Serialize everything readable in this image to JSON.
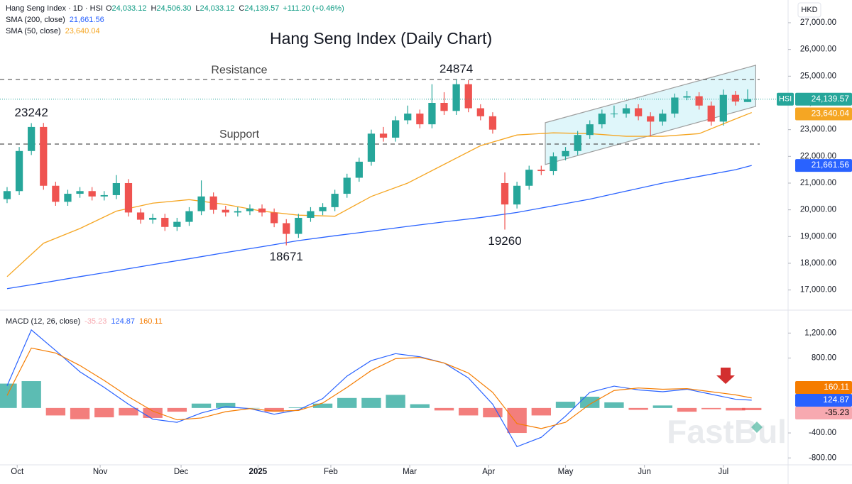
{
  "chart_data": [
    {
      "type": "candlestick",
      "title": "Hang Seng Index (Daily Chart)",
      "symbol_label": "Hang Seng Index · 1D · HSI",
      "ohlc_legend": [
        {
          "key": "O",
          "value": "24,033.12"
        },
        {
          "key": "H",
          "value": "24,506.30"
        },
        {
          "key": "L",
          "value": "24,033.12"
        },
        {
          "key": "C",
          "value": "24,139.57"
        }
      ],
      "change_label": "+111.20 (+0.46%)",
      "currency": "HKD",
      "price_badge": "HSI",
      "price_label": "24,139.57",
      "up_color": "#26a69a",
      "down_color": "#ef5350",
      "x": [
        0,
        3,
        6,
        9,
        12,
        15,
        18,
        21,
        24,
        27,
        30,
        33,
        36,
        39,
        42,
        45,
        48,
        51,
        54,
        57,
        60,
        63,
        66,
        69,
        72,
        75,
        78,
        81,
        84,
        87,
        90,
        93,
        96,
        99,
        102,
        105,
        108,
        111,
        114,
        117,
        120,
        123,
        126,
        129,
        132,
        135,
        138,
        141,
        144,
        147,
        150,
        153,
        156,
        159,
        162,
        165,
        168,
        171,
        174,
        177,
        180,
        183
      ],
      "ohlc": [
        [
          20400,
          20850,
          20250,
          20700
        ],
        [
          20700,
          22350,
          20550,
          22200
        ],
        [
          22200,
          23242,
          22050,
          23100
        ],
        [
          23100,
          23250,
          20750,
          20900
        ],
        [
          20900,
          21050,
          20150,
          20300
        ],
        [
          20300,
          20750,
          20150,
          20600
        ],
        [
          20600,
          20850,
          20450,
          20700
        ],
        [
          20700,
          20850,
          20350,
          20500
        ],
        [
          20500,
          20700,
          20350,
          20550
        ],
        [
          20550,
          21300,
          20400,
          21000
        ],
        [
          21000,
          21150,
          19750,
          19900
        ],
        [
          19900,
          20050,
          19480,
          19630
        ],
        [
          19630,
          19850,
          19480,
          19700
        ],
        [
          19700,
          19850,
          19210,
          19360
        ],
        [
          19360,
          19700,
          19210,
          19550
        ],
        [
          19550,
          20100,
          19400,
          19950
        ],
        [
          19950,
          21100,
          19800,
          20500
        ],
        [
          20500,
          20650,
          19850,
          20000
        ],
        [
          20000,
          20150,
          19750,
          19900
        ],
        [
          19900,
          20100,
          19750,
          19950
        ],
        [
          19950,
          20200,
          19800,
          20050
        ],
        [
          20050,
          20200,
          19750,
          19900
        ],
        [
          19900,
          20050,
          19350,
          19500
        ],
        [
          19500,
          19650,
          18671,
          19100
        ],
        [
          19100,
          19850,
          18950,
          19700
        ],
        [
          19700,
          20100,
          19550,
          19950
        ],
        [
          19950,
          20250,
          19800,
          20100
        ],
        [
          20100,
          20750,
          19950,
          20600
        ],
        [
          20600,
          21350,
          20450,
          21200
        ],
        [
          21200,
          21950,
          21050,
          21800
        ],
        [
          21800,
          23000,
          21650,
          22850
        ],
        [
          22850,
          23100,
          22550,
          22700
        ],
        [
          22700,
          23500,
          22550,
          23350
        ],
        [
          23350,
          23900,
          23200,
          23600
        ],
        [
          23600,
          23750,
          23050,
          23200
        ],
        [
          23200,
          24700,
          23050,
          24000
        ],
        [
          24000,
          24400,
          23550,
          23700
        ],
        [
          23700,
          24874,
          23550,
          24700
        ],
        [
          24700,
          24850,
          23650,
          23800
        ],
        [
          23800,
          23950,
          23350,
          23500
        ],
        [
          23500,
          23650,
          22850,
          23000
        ],
        [
          21000,
          21400,
          19260,
          20200
        ],
        [
          20200,
          21050,
          20050,
          20900
        ],
        [
          20900,
          21650,
          20750,
          21500
        ],
        [
          21500,
          21650,
          21300,
          21450
        ],
        [
          21450,
          22150,
          21300,
          22000
        ],
        [
          22000,
          22350,
          21850,
          22200
        ],
        [
          22200,
          22950,
          22050,
          22800
        ],
        [
          22800,
          23350,
          22650,
          23200
        ],
        [
          23200,
          23750,
          23050,
          23600
        ],
        [
          23600,
          23900,
          23450,
          23600
        ],
        [
          23600,
          23950,
          23450,
          23800
        ],
        [
          23800,
          23950,
          23350,
          23500
        ],
        [
          23500,
          23650,
          22750,
          23300
        ],
        [
          23300,
          23750,
          23150,
          23600
        ],
        [
          23600,
          24350,
          23450,
          24200
        ],
        [
          24200,
          24450,
          24100,
          24250
        ],
        [
          24250,
          24400,
          23750,
          23900
        ],
        [
          23900,
          24050,
          23150,
          23300
        ],
        [
          23300,
          24500,
          23150,
          24300
        ],
        [
          24300,
          24450,
          23900,
          24050
        ],
        [
          24033.12,
          24506.3,
          24033.12,
          24139.57
        ]
      ],
      "xlim": [
        -1.75,
        193
      ],
      "xticks": [
        {
          "value": 2.5,
          "label": "Oct"
        },
        {
          "value": 23,
          "label": "Nov"
        },
        {
          "value": 43,
          "label": "Dec"
        },
        {
          "value": 62,
          "label": "2025"
        },
        {
          "value": 80,
          "label": "Feb"
        },
        {
          "value": 99.5,
          "label": "Mar"
        },
        {
          "value": 119,
          "label": "Apr"
        },
        {
          "value": 138,
          "label": "May"
        },
        {
          "value": 157.5,
          "label": "Jun"
        },
        {
          "value": 177,
          "label": "Jul"
        }
      ],
      "ylim": [
        16300,
        27850
      ],
      "yticks": [
        {
          "value": 17000,
          "label": "17,000.00"
        },
        {
          "value": 18000,
          "label": "18,000.00"
        },
        {
          "value": 19000,
          "label": "19,000.00"
        },
        {
          "value": 20000,
          "label": "20,000.00"
        },
        {
          "value": 21000,
          "label": "21,000.00"
        },
        {
          "value": 22000,
          "label": "22,000.00"
        },
        {
          "value": 23000,
          "label": "23,000.00"
        },
        {
          "value": 24000,
          "label": "24,000.00"
        },
        {
          "value": 25000,
          "label": "25,000.00"
        },
        {
          "value": 26000,
          "label": "26,000.00"
        },
        {
          "value": 27000,
          "label": "27,000.00"
        }
      ],
      "overlays": [
        {
          "name": "SMA (200, close)",
          "value_label": "21,661.56",
          "color": "#2962ff",
          "x": [
            0,
            9,
            18,
            27,
            36,
            45,
            54,
            63,
            72,
            81,
            90,
            99,
            108,
            117,
            126,
            135,
            144,
            153,
            162,
            171,
            180,
            184
          ],
          "values": [
            17050,
            17270,
            17500,
            17720,
            17950,
            18170,
            18400,
            18620,
            18850,
            19030,
            19200,
            19380,
            19550,
            19710,
            19900,
            20150,
            20400,
            20700,
            21000,
            21250,
            21500,
            21661.56
          ]
        },
        {
          "name": "SMA (50, close)",
          "value_label": "23,640.04",
          "color": "#f5a623",
          "x": [
            0,
            9,
            18,
            27,
            36,
            45,
            54,
            63,
            72,
            81,
            90,
            99,
            108,
            117,
            126,
            135,
            144,
            153,
            162,
            171,
            180,
            184
          ],
          "values": [
            17500,
            18750,
            19300,
            19950,
            20250,
            20380,
            20200,
            19950,
            19800,
            19760,
            20500,
            21000,
            21700,
            22400,
            22800,
            22880,
            22850,
            22750,
            22750,
            22850,
            23400,
            23640.04
          ]
        }
      ],
      "levels": [
        {
          "name": "Resistance",
          "value": 24874
        },
        {
          "name": "Support",
          "value": 22460
        }
      ],
      "annotations": [
        {
          "label": "23242",
          "x": 6,
          "value": 23242
        },
        {
          "label": "18671",
          "x": 69,
          "value": 18671
        },
        {
          "label": "24874",
          "x": 111,
          "value": 24874
        },
        {
          "label": "19260",
          "x": 123,
          "value": 19260
        }
      ],
      "channel": {
        "x": [
          133,
          185
        ],
        "upper": [
          23260,
          25410
        ],
        "lower": [
          21695,
          23870
        ],
        "color": "#d4f3f8"
      },
      "watermark": "FastBull"
    },
    {
      "type": "macd",
      "title": "MACD (12, 26, close)",
      "x": [
        0,
        6,
        12,
        18,
        24,
        30,
        36,
        42,
        48,
        54,
        60,
        66,
        72,
        78,
        84,
        90,
        96,
        102,
        108,
        114,
        120,
        126,
        132,
        138,
        144,
        150,
        156,
        162,
        168,
        174,
        180,
        184
      ],
      "histogram": {
        "value_label": "-35.23",
        "up_color": "#26a69a",
        "down_color": "#ef5350",
        "label_color": "#f7a9b0",
        "values": [
          390,
          430,
          -120,
          -180,
          -150,
          -120,
          -160,
          -60,
          70,
          80,
          0,
          -60,
          10,
          70,
          160,
          160,
          210,
          60,
          -40,
          -120,
          -150,
          -400,
          -120,
          100,
          180,
          90,
          -30,
          40,
          -60,
          -20,
          -40,
          -35.23
        ]
      },
      "series": [
        {
          "value_label": "124.87",
          "color": "#2962ff",
          "values": [
            355,
            1250,
            920,
            580,
            330,
            60,
            -180,
            -230,
            -80,
            20,
            -10,
            -100,
            -30,
            150,
            510,
            760,
            870,
            820,
            720,
            480,
            60,
            -620,
            -470,
            -130,
            250,
            350,
            290,
            260,
            300,
            220,
            140,
            124.87
          ]
        },
        {
          "value_label": "160.11",
          "color": "#f57c00",
          "values": [
            200,
            960,
            880,
            680,
            440,
            180,
            -50,
            -190,
            -160,
            -60,
            -10,
            -50,
            -40,
            80,
            330,
            600,
            790,
            810,
            720,
            560,
            250,
            -250,
            -330,
            -230,
            60,
            280,
            320,
            300,
            310,
            260,
            210,
            160.11
          ]
        }
      ],
      "ylim": [
        -911,
        1533
      ],
      "yticks": [
        {
          "value": 1200,
          "label": "1,200.00"
        },
        {
          "value": 800,
          "label": "800.00"
        },
        {
          "value": -400,
          "label": "-400.00"
        },
        {
          "value": -800,
          "label": "-800.00"
        }
      ]
    }
  ]
}
